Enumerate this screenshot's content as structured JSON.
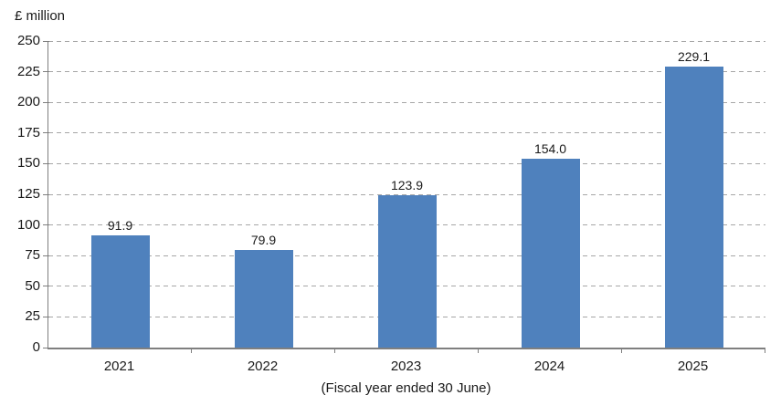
{
  "chart_data": {
    "type": "bar",
    "title": "",
    "ylabel": "£ million",
    "xlabel": "(Fiscal year ended 30 June)",
    "categories": [
      "2021",
      "2022",
      "2023",
      "2024",
      "2025"
    ],
    "values": [
      91.9,
      79.9,
      123.9,
      154.0,
      229.1
    ],
    "value_labels": [
      "91.9",
      "79.9",
      "123.9",
      "154.0",
      "229.1"
    ],
    "ylim": [
      0,
      250
    ],
    "ytick_step": 25,
    "yticks": [
      0,
      25,
      50,
      75,
      100,
      125,
      150,
      175,
      200,
      225,
      250
    ],
    "grid": "horizontal-dashed",
    "legend": "none",
    "colors": {
      "bar": "#4F81BD",
      "gridline": "#A6A6A6",
      "axis": "#7F7F7F",
      "text": "#1A1A1A"
    }
  }
}
